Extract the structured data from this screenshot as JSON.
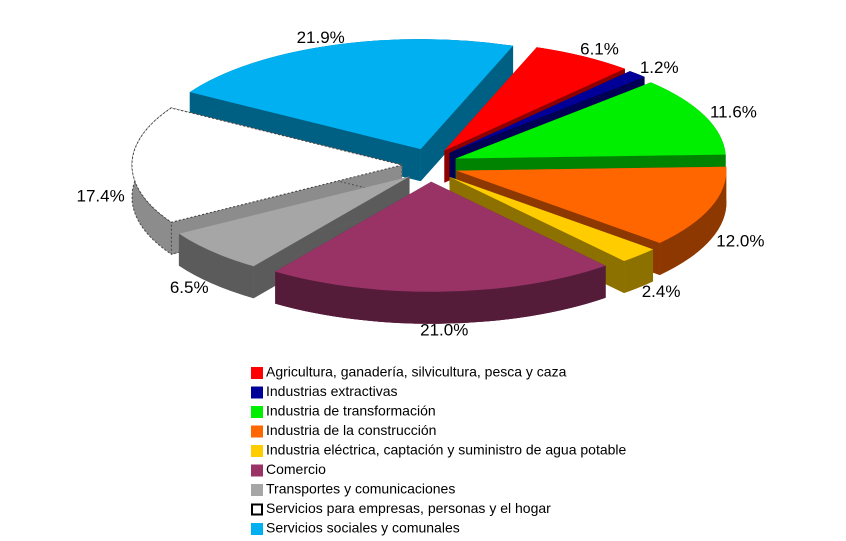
{
  "chart_data": {
    "type": "pie",
    "categories": [
      "Agricultura, ganadería, silvicultura, pesca y caza",
      "Industrias extractivas",
      "Industria de transformación",
      "Industria de la construcción",
      "Industria eléctrica, captación y suministro de agua potable",
      "Comercio",
      "Transportes y comunicaciones",
      "Servicios para empresas, personas y el hogar",
      "Servicios sociales y comunales"
    ],
    "values": [
      6.1,
      1.2,
      11.6,
      12.0,
      2.4,
      21.0,
      6.5,
      17.4,
      21.9
    ],
    "value_labels": [
      "6.1%",
      "1.2%",
      "11.6%",
      "12.0%",
      "2.4%",
      "21.0%",
      "6.5%",
      "17.4%",
      "21.9%"
    ],
    "colors": [
      "#ff0000",
      "#000099",
      "#00ee00",
      "#ff6600",
      "#ffcc00",
      "#993366",
      "#a6a6a6",
      "#ffffff",
      "#00b0f0"
    ]
  }
}
